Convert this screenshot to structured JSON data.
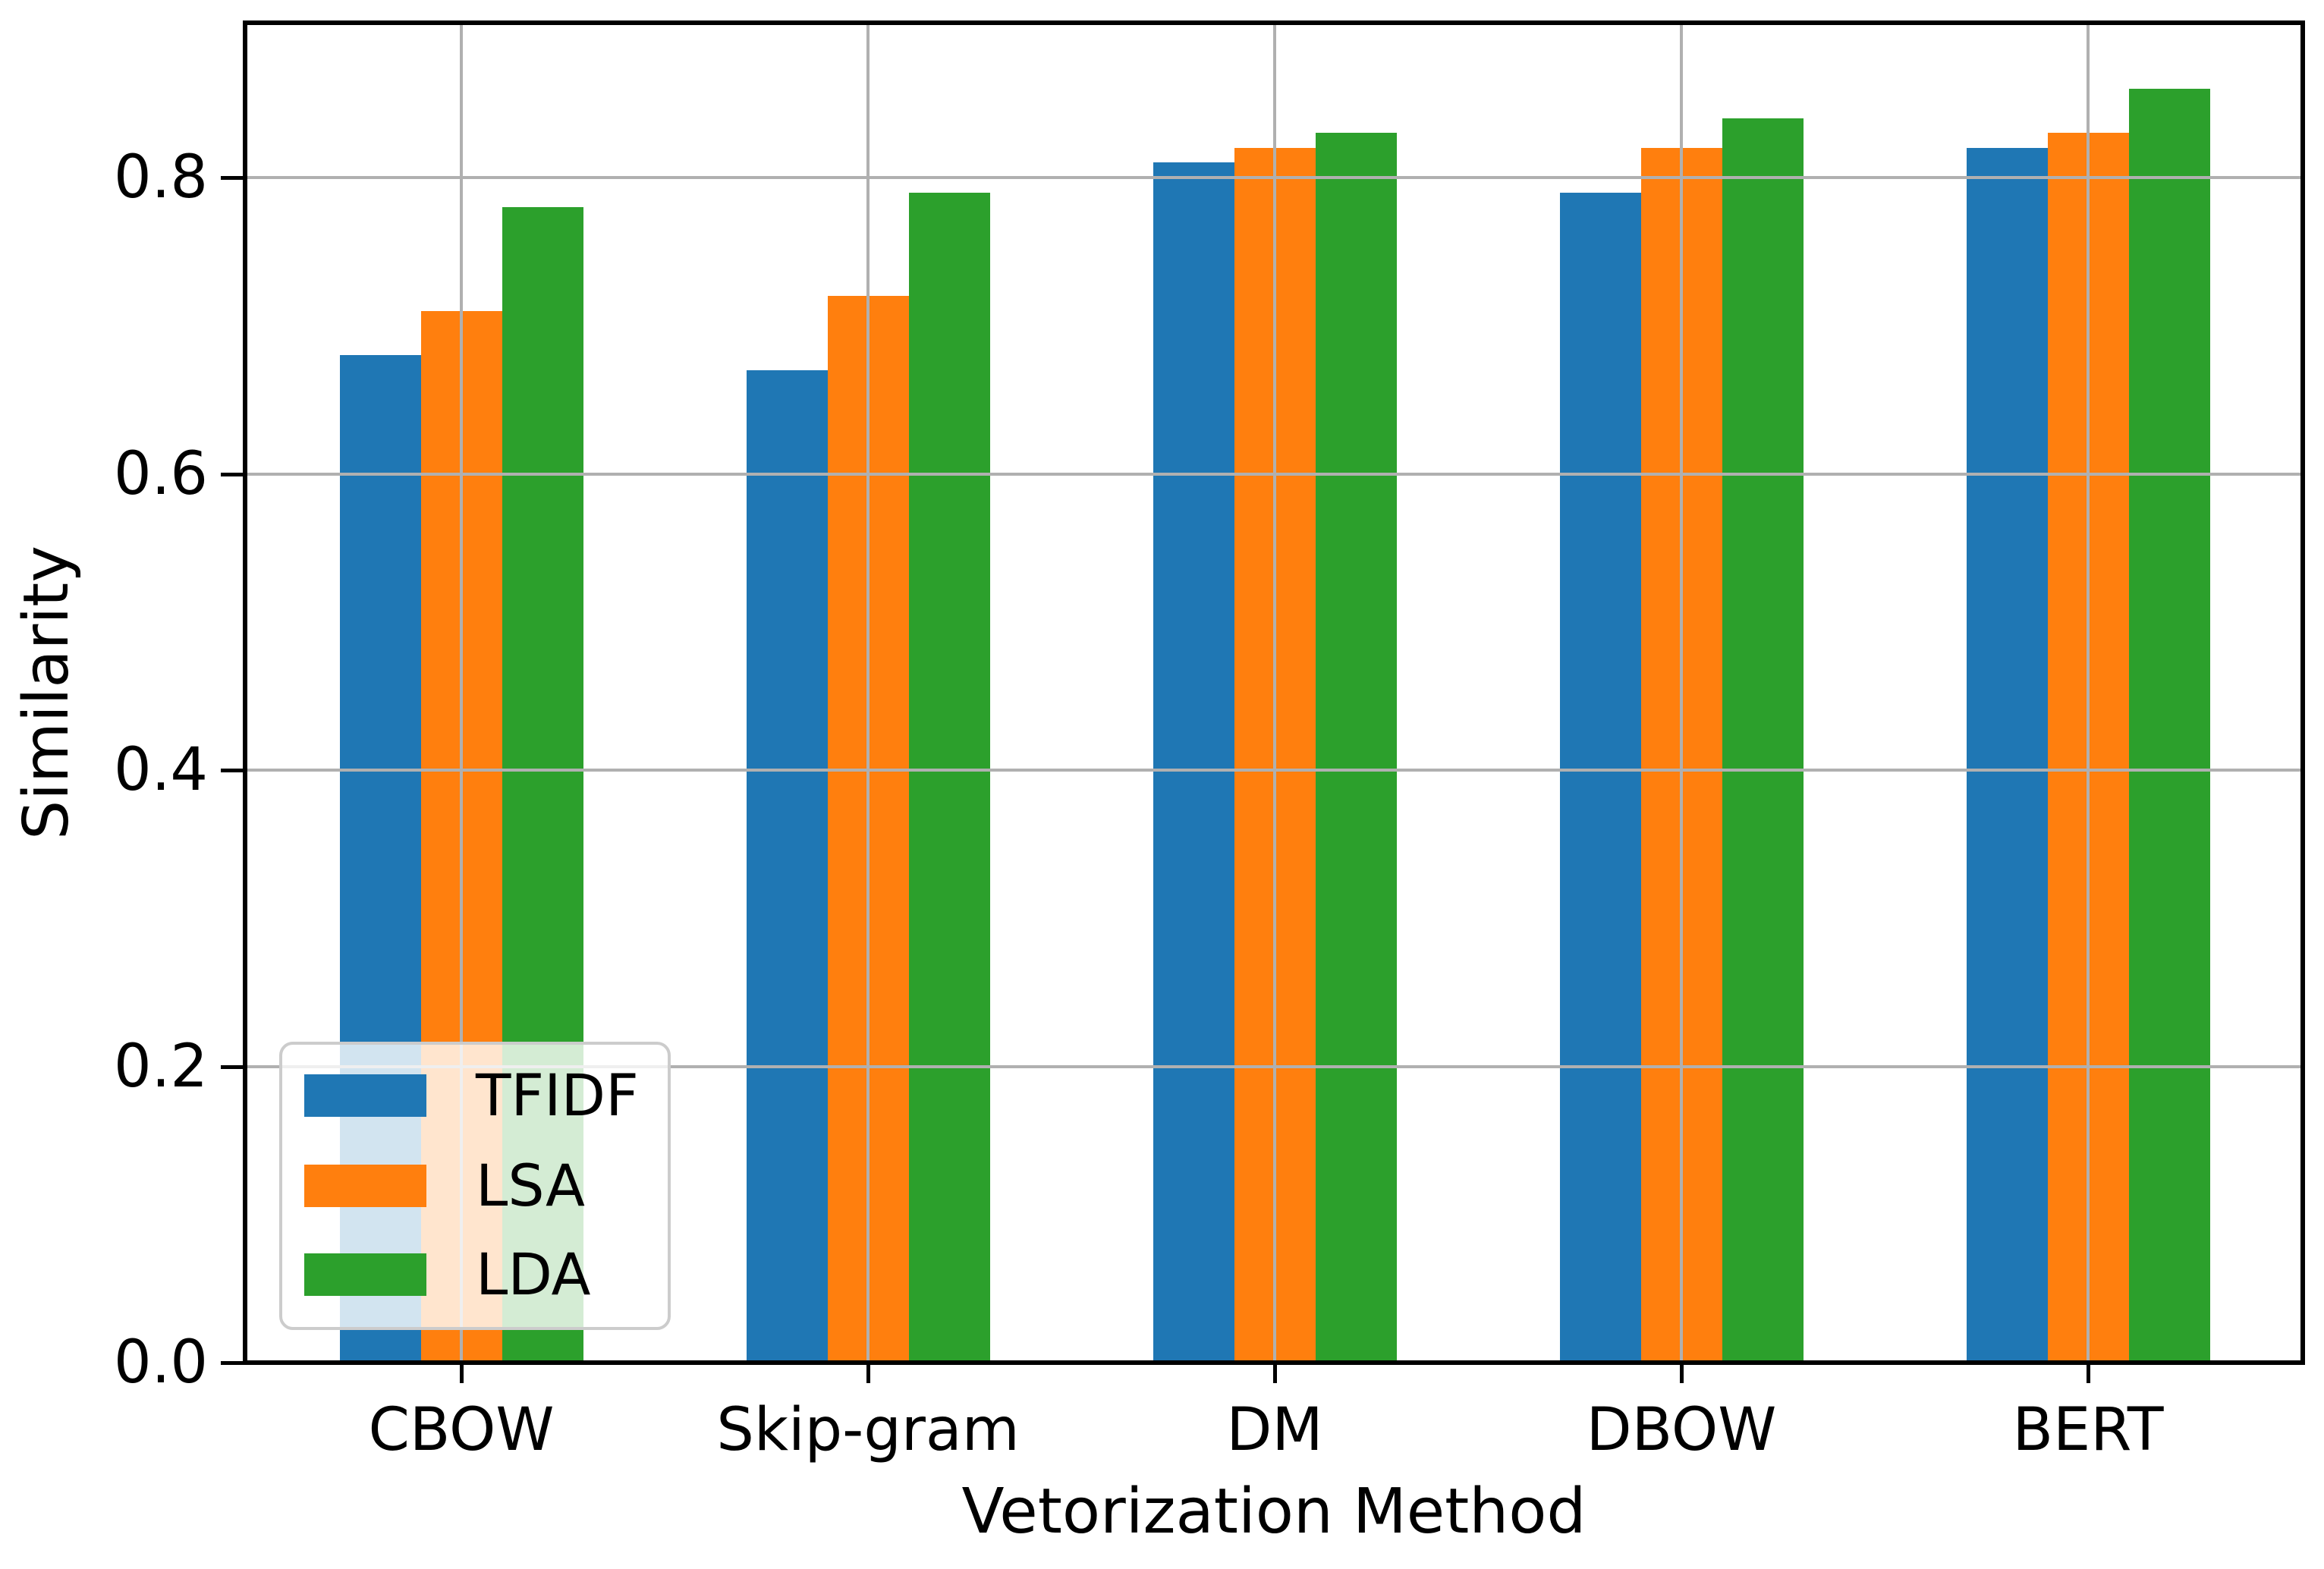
{
  "chart_data": {
    "type": "bar",
    "title": "",
    "xlabel": "Vetorization Method",
    "ylabel": "Similarity",
    "categories": [
      "CBOW",
      "Skip-gram",
      "DM",
      "DBOW",
      "BERT"
    ],
    "series": [
      {
        "name": "TFIDF",
        "color": "#1f77b4",
        "values": [
          0.68,
          0.67,
          0.81,
          0.79,
          0.82
        ]
      },
      {
        "name": "LSA",
        "color": "#ff7f0e",
        "values": [
          0.71,
          0.72,
          0.82,
          0.82,
          0.83
        ]
      },
      {
        "name": "LDA",
        "color": "#2ca02c",
        "values": [
          0.78,
          0.79,
          0.83,
          0.84,
          0.86
        ]
      }
    ],
    "ylim": [
      0,
      0.904
    ],
    "yticks": [
      0.0,
      0.2,
      0.4,
      0.6,
      0.8
    ],
    "ytick_labels": [
      "0.0",
      "0.2",
      "0.4",
      "0.6",
      "0.8"
    ],
    "grid": true,
    "grid_color": "#b0b0b0",
    "grid_above_bars": true,
    "spine_color": "#000000",
    "background_color": "#ffffff",
    "legend_position": "lower left",
    "legend_labels": [
      "TFIDF",
      "LSA",
      "LDA"
    ]
  }
}
